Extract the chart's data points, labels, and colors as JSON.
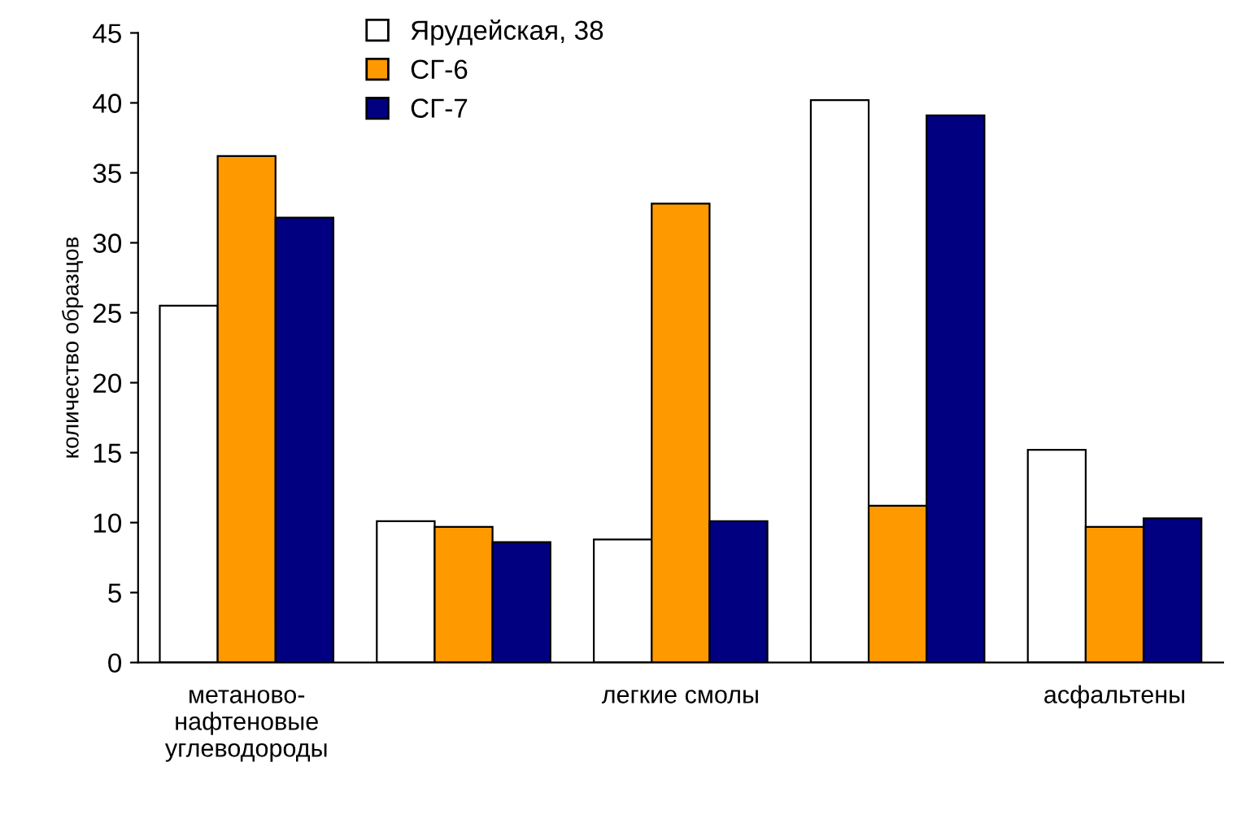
{
  "chart_data": {
    "type": "bar",
    "ylabel": "количество образцов",
    "categories": [
      "метаново-\nнафтеновые\nуглеводороды",
      null,
      "легкие смолы",
      null,
      "асфальтены"
    ],
    "series": [
      {
        "name": "Ярудейская, 38",
        "color": "#ffffff",
        "values": [
          25.5,
          10.1,
          8.8,
          40.2,
          15.2
        ]
      },
      {
        "name": "СГ-6",
        "color": "#ff9900",
        "values": [
          36.2,
          9.7,
          32.8,
          11.2,
          9.7
        ]
      },
      {
        "name": "СГ-7",
        "color": "#000080",
        "values": [
          31.8,
          8.6,
          10.1,
          39.1,
          10.3
        ]
      }
    ],
    "ylim": [
      0,
      45
    ],
    "yticks": [
      0,
      5,
      10,
      15,
      20,
      25,
      30,
      35,
      40,
      45
    ],
    "grid": false,
    "legend": "top"
  }
}
